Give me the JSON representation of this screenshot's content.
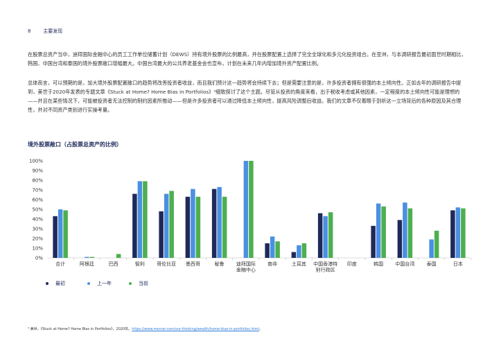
{
  "header": {
    "page_number": "8",
    "section": "主要发现"
  },
  "paragraphs": {
    "p1": "在股票总资产当中，迪拜国际金融中心的员工工作单位储蓄计划（DEWS）持有境外股票的比例最高，并在股票配置上选择了完全全球化和多元化投资组合。在亚洲，与本调研报告最初面世时期相比，韩国、中国台湾和泰国的境外股票敞口增幅最大。中国台湾最大的公共养老基金会也宣布，计划在未来几年内增加境外资产配置比例。",
    "p2": "总体而言，可以预期的是，加大境外股票配置敞口的趋势将改善投资者收益，而且我们预计这一趋势将会持续下去；但是需要注意的是，许多投资者拥有很强的本土倾向性。正如去年的调研报告中提到，美世于2020年发表的专题文章《Stuck at Home? Home Bias in Portfolios》³细致探讨了这个主题。尽管从投资的角度来看，出于税收考虑或其他因素，一定程度的本土倾向性可能是理想的——并且在某些情况下，可能被投资者无法控制的制约因素所推动——但是许多投资者可以通过降低本土倾向性，提高风险调整后收益。我们的文章不仅着眼于剖析这一立场背后的各种原因及其合理性，并对不同资产类别进行实操考量。"
  },
  "chart_title": "境外股票敞口（占股票总资产的比例）",
  "legend": [
    {
      "label": "最初",
      "color": "#1f2a5a"
    },
    {
      "label": "上一年",
      "color": "#4a90e2"
    },
    {
      "label": "当前",
      "color": "#4caf50"
    }
  ],
  "footnote": {
    "text": "³ 美世，《Stuck at Home? Home Bias in Portfolios》，2020年。",
    "link": "https://www.mercer.com/our-thinking/wealth/home-bias-in-portfolios.html",
    "end": "。"
  },
  "chart_data": {
    "type": "bar",
    "title": "境外股票敞口（占股票总资产的比例）",
    "xlabel": "",
    "ylabel": "",
    "ylim": [
      0,
      100
    ],
    "yticks": [
      "0%",
      "10%",
      "20%",
      "30%",
      "40%",
      "50%",
      "60%",
      "70%",
      "80%",
      "90%",
      "100%"
    ],
    "grid": false,
    "legend_position": "bottom-left",
    "categories": [
      [
        "合计"
      ],
      [
        "阿根廷"
      ],
      [
        "巴西"
      ],
      [
        "智利"
      ],
      [
        "哥伦比亚"
      ],
      [
        "墨西哥"
      ],
      [
        "秘鲁"
      ],
      [
        "迪拜国际",
        "金融中心"
      ],
      [
        "南非"
      ],
      [
        "土耳其"
      ],
      [
        "中国香港特",
        "别行政区"
      ],
      [
        "印度"
      ],
      [
        "韩国"
      ],
      [
        "中国台湾"
      ],
      [
        "泰国"
      ],
      [
        "日本"
      ]
    ],
    "series": [
      {
        "name": "最初",
        "color": "#1f2a5a",
        "values": [
          43,
          0,
          0,
          66,
          48,
          63,
          71,
          0,
          15,
          6,
          46,
          0,
          33,
          39,
          0,
          49
        ]
      },
      {
        "name": "上一年",
        "color": "#4a90e2",
        "values": [
          50,
          1,
          0,
          79,
          66,
          71,
          73,
          100,
          22,
          13,
          43,
          0,
          56,
          57,
          19,
          52
        ]
      },
      {
        "name": "当前",
        "color": "#4caf50",
        "values": [
          49,
          1,
          4,
          79,
          69,
          63,
          63,
          100,
          17,
          15,
          47,
          0,
          53,
          51,
          28,
          51
        ]
      }
    ]
  }
}
